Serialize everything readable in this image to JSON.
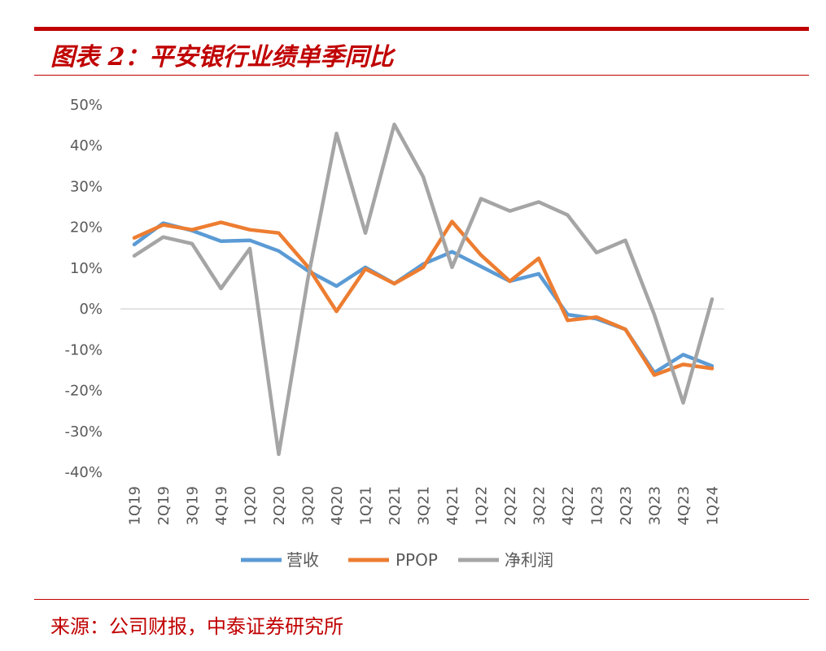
{
  "header": {
    "title": "图表 2：平安银行业绩单季同比"
  },
  "footer": {
    "source": "来源：公司财报，中泰证券研究所"
  },
  "colors": {
    "accent": "#c00000",
    "series_revenue": "#5b9bd5",
    "series_ppop": "#ed7d31",
    "series_net_profit": "#a5a5a5"
  },
  "chart_data": {
    "type": "line",
    "title": "图表 2：平安银行业绩单季同比",
    "xlabel": "",
    "ylabel": "",
    "ylim": [
      -40,
      50
    ],
    "y_ticks": [
      50,
      40,
      30,
      20,
      10,
      0,
      -10,
      -20,
      -30,
      -40
    ],
    "y_tick_labels": [
      "50%",
      "40%",
      "30%",
      "20%",
      "10%",
      "0%",
      "-10%",
      "-20%",
      "-30%",
      "-40%"
    ],
    "categories": [
      "1Q19",
      "2Q19",
      "3Q19",
      "4Q19",
      "1Q20",
      "2Q20",
      "3Q20",
      "4Q20",
      "1Q21",
      "2Q21",
      "3Q21",
      "4Q21",
      "1Q22",
      "2Q22",
      "3Q22",
      "4Q22",
      "1Q23",
      "2Q23",
      "3Q23",
      "4Q23",
      "1Q24"
    ],
    "grid": false,
    "legend_position": "bottom",
    "series": [
      {
        "name": "营收",
        "color": "#5b9bd5",
        "values": [
          15.8,
          21.0,
          19.2,
          16.6,
          16.8,
          14.2,
          9.4,
          5.6,
          10.2,
          6.2,
          11.0,
          14.0,
          10.4,
          6.8,
          8.6,
          -1.4,
          -2.4,
          -5.0,
          -15.6,
          -11.2,
          -14.0
        ]
      },
      {
        "name": "PPOP",
        "color": "#ed7d31",
        "values": [
          17.4,
          20.6,
          19.4,
          21.2,
          19.4,
          18.6,
          10.4,
          -0.6,
          9.8,
          6.2,
          10.2,
          21.4,
          13.2,
          6.8,
          12.4,
          -2.8,
          -2.0,
          -5.0,
          -16.2,
          -13.6,
          -14.6
        ]
      },
      {
        "name": "净利润",
        "color": "#a5a5a5",
        "values": [
          13.0,
          17.6,
          16.0,
          5.0,
          14.8,
          -35.6,
          7.0,
          43.0,
          18.6,
          45.2,
          32.4,
          10.2,
          27.0,
          24.0,
          26.2,
          23.0,
          13.8,
          16.8,
          -1.4,
          -23.0,
          2.4
        ]
      }
    ]
  }
}
